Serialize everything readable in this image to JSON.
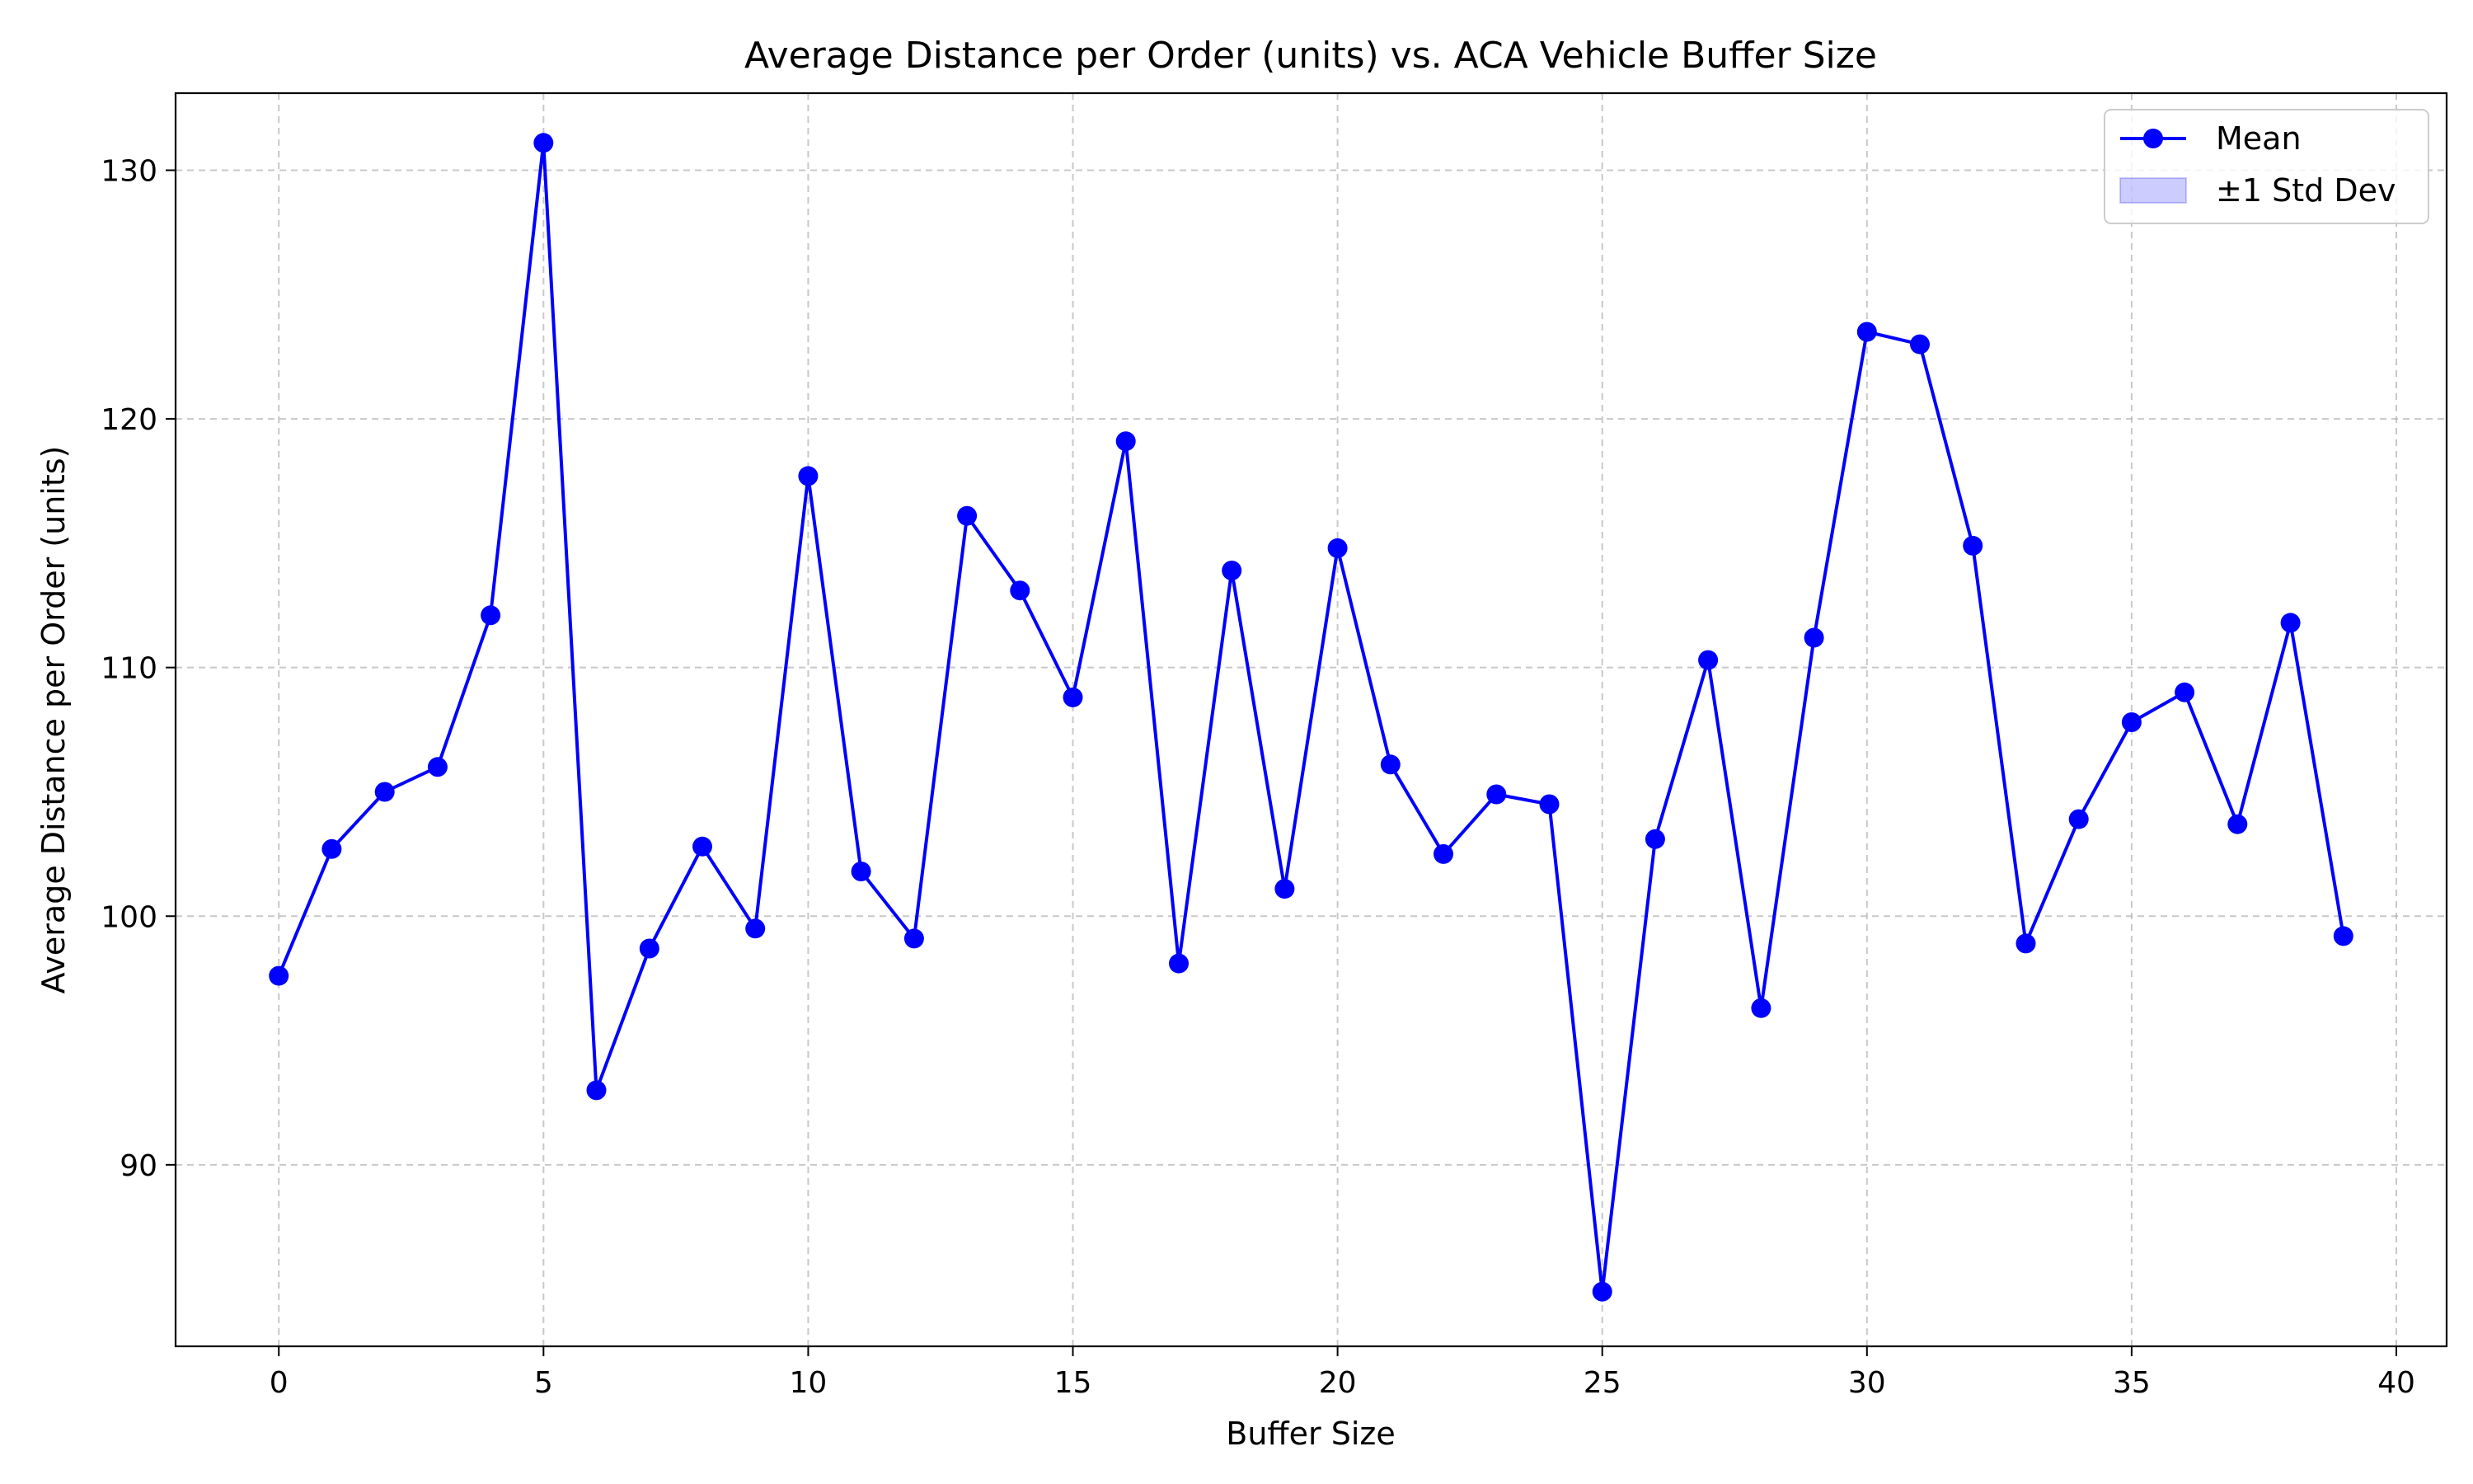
{
  "chart_data": {
    "type": "line",
    "title": "Average Distance per Order (units) vs. ACA Vehicle Buffer Size",
    "xlabel": "Buffer Size",
    "ylabel": "Average Distance per Order (units)",
    "xlim": [
      -1.95,
      40.95
    ],
    "ylim": [
      82.7,
      133.1
    ],
    "xticks": [
      0,
      5,
      10,
      15,
      20,
      25,
      30,
      35,
      40
    ],
    "yticks": [
      90,
      100,
      110,
      120,
      130
    ],
    "grid": true,
    "legend_position": "top-right",
    "colors": {
      "line": "#0000ff",
      "band": "#0000ff",
      "grid": "#b0b0b0",
      "axes": "#000000"
    },
    "legend": [
      {
        "label": "Mean",
        "kind": "line-marker"
      },
      {
        "label": "±1 Std Dev",
        "kind": "band"
      }
    ],
    "x": [
      0,
      1,
      2,
      3,
      4,
      5,
      6,
      7,
      8,
      9,
      10,
      11,
      12,
      13,
      14,
      15,
      16,
      17,
      18,
      19,
      20,
      21,
      22,
      23,
      24,
      25,
      26,
      27,
      28,
      29,
      30,
      31,
      32,
      33,
      34,
      35,
      36,
      37,
      38,
      39
    ],
    "series": [
      {
        "name": "Mean",
        "values": [
          97.6,
          102.7,
          105.0,
          106.0,
          112.1,
          131.1,
          93.0,
          98.7,
          102.8,
          99.5,
          117.7,
          101.8,
          99.1,
          116.1,
          113.1,
          108.8,
          119.1,
          98.1,
          113.9,
          101.1,
          114.8,
          106.1,
          102.5,
          104.9,
          104.5,
          84.9,
          103.1,
          110.3,
          96.3,
          111.2,
          123.5,
          123.0,
          114.9,
          98.9,
          103.9,
          107.8,
          109.0,
          103.7,
          111.8,
          99.2
        ]
      }
    ]
  }
}
